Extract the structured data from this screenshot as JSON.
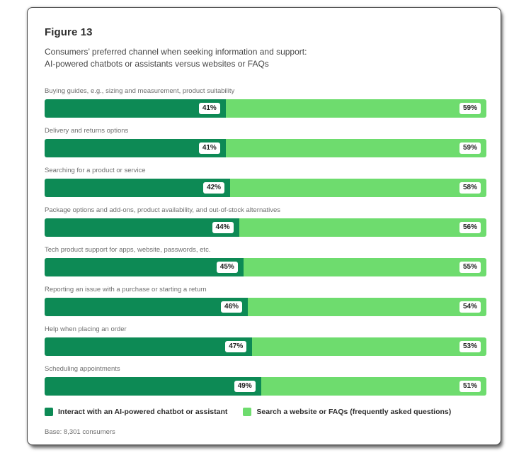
{
  "figure": {
    "title": "Figure 13",
    "subtitle_line1": "Consumers’ preferred channel when seeking information and support:",
    "subtitle_line2": "AI-powered chatbots or assistants versus websites or FAQs",
    "base_note": "Base: 8,301 consumers"
  },
  "colors": {
    "chatbot_green": "#0d8a55",
    "website_green": "#6edc6e",
    "value_pill_bg": "#ffffff",
    "card_border": "#4a4a4a"
  },
  "chart_data": {
    "type": "bar",
    "orientation": "horizontal",
    "stacked": true,
    "unit": "%",
    "value_labels": true,
    "legend_position": "bottom",
    "xlim": [
      0,
      100
    ],
    "categories": [
      "Buying guides, e.g., sizing and measurement, product suitability",
      "Delivery and returns options",
      "Searching for a product or service",
      "Package options and add-ons, product availability, and out-of-stock alternatives",
      "Tech product support for apps, website, passwords, etc.",
      "Reporting an issue with a purchase or starting a return",
      "Help when placing an order",
      "Scheduling appointments"
    ],
    "series": [
      {
        "name": "Interact with an AI-powered chatbot or assistant",
        "color": "#0d8a55",
        "values": [
          41,
          41,
          42,
          44,
          45,
          46,
          47,
          49
        ]
      },
      {
        "name": "Search a website or FAQs (frequently asked questions)",
        "color": "#6edc6e",
        "values": [
          59,
          59,
          58,
          56,
          55,
          54,
          53,
          51
        ]
      }
    ]
  }
}
